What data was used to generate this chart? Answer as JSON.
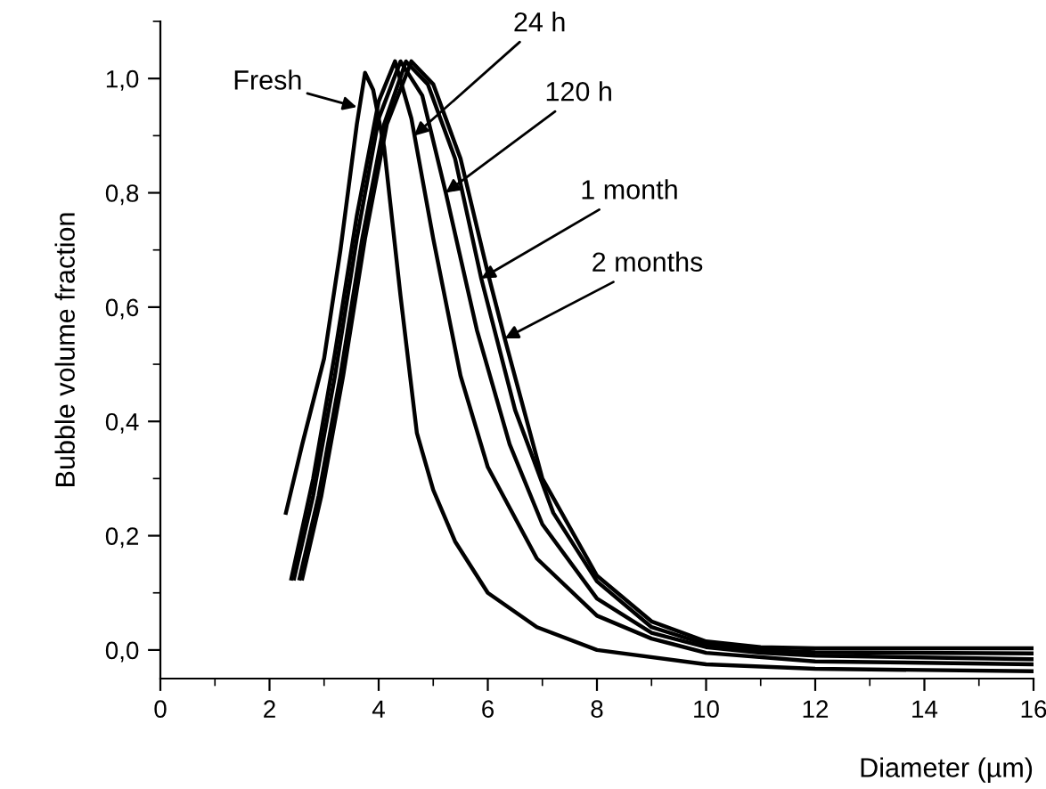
{
  "chart_data": {
    "type": "line",
    "xlabel": "Diameter (µm)",
    "ylabel": "Bubble volume fraction",
    "xlim": [
      0,
      16
    ],
    "xticks": [
      0,
      2,
      4,
      6,
      8,
      10,
      12,
      14,
      16
    ],
    "ylim": [
      -0.05,
      1.1
    ],
    "yticks": [
      {
        "value": 0,
        "label": "0,0"
      },
      {
        "value": 0.2,
        "label": "0,2"
      },
      {
        "value": 0.4,
        "label": "0,4"
      },
      {
        "value": 0.6,
        "label": "0,6"
      },
      {
        "value": 0.8,
        "label": "0,8"
      },
      {
        "value": 1.0,
        "label": "1,0"
      }
    ],
    "grid": false,
    "legend": false,
    "line_style": "solid",
    "marker": "none",
    "series": [
      {
        "color": "#000000",
        "x": [
          2.3,
          2.6,
          3.0,
          3.3,
          3.6,
          3.75,
          3.9,
          4.1,
          4.4,
          4.7,
          5.0,
          5.4,
          6.0,
          6.9,
          8,
          10,
          12,
          16
        ],
        "values": [
          0.24,
          0.36,
          0.51,
          0.7,
          0.92,
          1.01,
          0.98,
          0.88,
          0.62,
          0.38,
          0.28,
          0.19,
          0.1,
          0.04,
          0.0,
          -0.025,
          -0.033,
          -0.037
        ]
      },
      {
        "color": "#000000",
        "x": [
          2.4,
          2.8,
          3.2,
          3.6,
          4.0,
          4.3,
          4.6,
          5.0,
          5.5,
          6.0,
          6.9,
          8,
          9,
          10,
          12,
          16
        ],
        "values": [
          0.125,
          0.3,
          0.52,
          0.76,
          0.96,
          1.03,
          0.93,
          0.72,
          0.48,
          0.32,
          0.16,
          0.06,
          0.02,
          -0.005,
          -0.02,
          -0.025
        ]
      },
      {
        "color": "#000000",
        "x": [
          2.45,
          2.8,
          3.2,
          3.6,
          4.0,
          4.4,
          4.8,
          5.23,
          5.8,
          6.4,
          7,
          8,
          9,
          10,
          11,
          12,
          16
        ],
        "values": [
          0.125,
          0.27,
          0.48,
          0.72,
          0.93,
          1.03,
          0.97,
          0.8,
          0.56,
          0.36,
          0.22,
          0.09,
          0.03,
          0.005,
          -0.005,
          -0.01,
          -0.016
        ]
      },
      {
        "color": "#000000",
        "x": [
          2.55,
          2.9,
          3.3,
          3.7,
          4.1,
          4.5,
          4.9,
          5.4,
          5.88,
          6.5,
          7.2,
          8,
          9,
          10,
          11,
          12,
          16
        ],
        "values": [
          0.125,
          0.27,
          0.48,
          0.72,
          0.92,
          1.03,
          0.99,
          0.86,
          0.65,
          0.42,
          0.24,
          0.12,
          0.04,
          0.01,
          0.0,
          -0.004,
          -0.006
        ]
      },
      {
        "color": "#000000",
        "x": [
          2.6,
          2.95,
          3.35,
          3.75,
          4.15,
          4.6,
          5.0,
          5.5,
          6.0,
          6.31,
          7,
          8,
          9,
          10,
          11,
          12,
          16
        ],
        "values": [
          0.125,
          0.27,
          0.48,
          0.72,
          0.92,
          1.03,
          0.99,
          0.86,
          0.66,
          0.545,
          0.3,
          0.13,
          0.05,
          0.015,
          0.005,
          0.003,
          0.003
        ]
      }
    ],
    "annotations": [
      {
        "text": "Fresh",
        "x": 3.6,
        "y": 0.95
      },
      {
        "text": "24 h",
        "x": 4.65,
        "y": 0.9
      },
      {
        "text": "120 h",
        "x": 5.23,
        "y": 0.8
      },
      {
        "text": "1 month",
        "x": 5.88,
        "y": 0.65
      },
      {
        "text": "2 months",
        "x": 6.31,
        "y": 0.545
      }
    ]
  }
}
